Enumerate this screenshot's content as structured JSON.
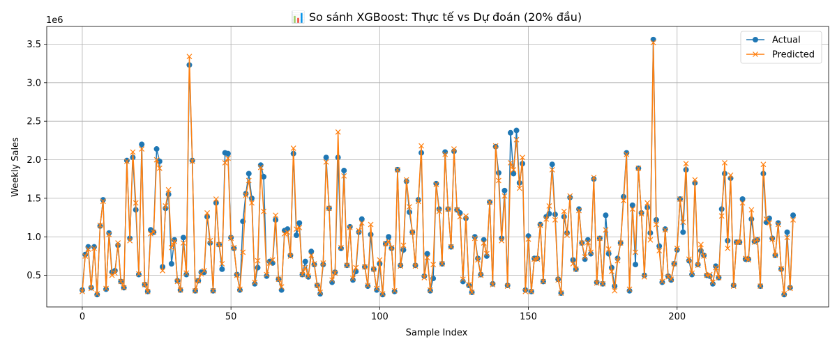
{
  "chart_data": {
    "type": "line",
    "title": "📊 So sánh XGBoost: Thực tế vs Dự đoán (20% đầu)",
    "xlabel": "Sample Index",
    "ylabel": "Weekly Sales",
    "y_multiplier": "1e6",
    "xlim": [
      -11.95,
      250.95
    ],
    "ylim": [
      0.09,
      3.73
    ],
    "xticks": [
      0,
      50,
      100,
      150,
      200
    ],
    "yticks": [
      0.5,
      1.0,
      1.5,
      2.0,
      2.5,
      3.0,
      3.5
    ],
    "ytick_labels": [
      "0.5",
      "1.0",
      "1.5",
      "2.0",
      "2.5",
      "3.0",
      "3.5"
    ],
    "grid": true,
    "legend": "top-right",
    "series": [
      {
        "name": "Actual",
        "color": "#1f77b4",
        "marker": "circle",
        "values": [
          0.31,
          0.77,
          0.87,
          0.34,
          0.87,
          0.25,
          1.14,
          1.48,
          0.32,
          1.05,
          0.54,
          0.56,
          0.89,
          0.42,
          0.34,
          1.99,
          0.98,
          2.03,
          1.35,
          0.51,
          2.2,
          0.38,
          0.29,
          1.09,
          1.06,
          2.14,
          1.98,
          0.61,
          1.37,
          1.55,
          0.65,
          0.96,
          0.43,
          0.31,
          0.99,
          0.51,
          3.23,
          1.99,
          0.3,
          0.43,
          0.54,
          0.54,
          1.26,
          0.92,
          0.3,
          1.44,
          0.9,
          0.58,
          2.09,
          2.08,
          0.99,
          0.85,
          0.51,
          0.31,
          1.2,
          1.56,
          1.82,
          1.5,
          0.39,
          0.6,
          1.93,
          1.78,
          0.49,
          0.68,
          0.66,
          1.22,
          0.45,
          0.31,
          1.08,
          1.1,
          0.76,
          2.08,
          1.02,
          1.18,
          0.51,
          0.68,
          0.48,
          0.81,
          0.64,
          0.37,
          0.26,
          0.64,
          2.03,
          1.37,
          0.41,
          0.54,
          2.03,
          0.85,
          1.86,
          0.63,
          1.13,
          0.44,
          0.55,
          1.06,
          1.23,
          0.61,
          0.36,
          1.03,
          0.58,
          0.31,
          0.65,
          0.25,
          0.91,
          1.0,
          0.85,
          0.29,
          1.87,
          0.63,
          0.83,
          1.72,
          1.32,
          1.06,
          0.63,
          1.48,
          2.09,
          0.49,
          0.78,
          0.3,
          0.46,
          1.69,
          1.36,
          0.65,
          2.1,
          1.36,
          0.87,
          2.11,
          1.35,
          1.31,
          0.42,
          1.24,
          0.37,
          0.28,
          1.0,
          0.72,
          0.51,
          0.96,
          0.75,
          1.45,
          0.39,
          2.17,
          1.83,
          0.98,
          1.6,
          0.37,
          2.35,
          1.82,
          2.38,
          1.7,
          1.95,
          0.31,
          1.01,
          0.29,
          0.72,
          0.72,
          1.16,
          0.42,
          1.26,
          1.3,
          1.94,
          1.29,
          0.45,
          0.27,
          1.26,
          1.05,
          1.51,
          0.7,
          0.58,
          1.36,
          0.92,
          0.71,
          0.96,
          0.78,
          1.75,
          0.41,
          0.98,
          0.39,
          1.28,
          0.78,
          0.6,
          0.36,
          0.72,
          0.92,
          1.52,
          2.09,
          0.3,
          1.41,
          0.64,
          1.89,
          1.31,
          0.5,
          1.38,
          1.05,
          3.56,
          1.22,
          0.88,
          0.41,
          1.1,
          0.49,
          0.44,
          0.65,
          0.83,
          1.49,
          1.06,
          1.87,
          0.69,
          0.51,
          1.7,
          0.64,
          0.82,
          0.76,
          0.5,
          0.49,
          0.39,
          0.62,
          0.47,
          1.36,
          1.82,
          0.95,
          1.76,
          0.37,
          0.93,
          0.93,
          1.49,
          0.71,
          0.71,
          1.23,
          0.94,
          0.96,
          0.36,
          1.82,
          1.19,
          1.24,
          0.98,
          0.76,
          1.18,
          0.58,
          0.25,
          1.06,
          0.34,
          1.28
        ]
      },
      {
        "name": "Predicted",
        "color": "#ff7f0e",
        "marker": "x",
        "values": [
          0.29,
          0.75,
          0.84,
          0.33,
          0.85,
          0.26,
          1.15,
          1.46,
          0.33,
          1.03,
          0.5,
          0.53,
          0.92,
          0.42,
          0.34,
          1.98,
          0.95,
          2.1,
          1.44,
          0.52,
          2.14,
          0.38,
          0.29,
          1.04,
          1.06,
          2.0,
          1.89,
          0.56,
          1.4,
          1.61,
          0.86,
          0.94,
          0.42,
          0.31,
          0.92,
          0.53,
          3.34,
          1.98,
          0.3,
          0.43,
          0.52,
          0.56,
          1.31,
          0.95,
          0.3,
          1.49,
          0.9,
          0.65,
          1.96,
          2.02,
          0.98,
          0.86,
          0.5,
          0.32,
          0.8,
          1.54,
          1.73,
          1.44,
          0.41,
          0.69,
          1.9,
          1.33,
          0.51,
          0.66,
          0.7,
          1.28,
          0.45,
          0.35,
          1.04,
          1.06,
          0.75,
          2.15,
          1.1,
          1.12,
          0.51,
          0.6,
          0.49,
          0.76,
          0.65,
          0.37,
          0.28,
          0.66,
          1.97,
          1.37,
          0.44,
          0.53,
          2.36,
          0.86,
          1.79,
          0.63,
          1.12,
          0.46,
          0.6,
          1.08,
          1.18,
          0.61,
          0.37,
          1.16,
          0.58,
          0.33,
          0.7,
          0.26,
          0.91,
          0.94,
          0.86,
          0.3,
          1.87,
          0.62,
          0.89,
          1.74,
          1.39,
          1.06,
          0.62,
          1.46,
          2.18,
          0.47,
          0.73,
          0.31,
          0.64,
          1.68,
          1.33,
          0.65,
          2.07,
          1.36,
          0.87,
          2.14,
          1.35,
          1.26,
          0.45,
          1.27,
          0.38,
          0.28,
          0.98,
          0.7,
          0.5,
          0.92,
          0.78,
          1.45,
          0.38,
          2.18,
          1.73,
          0.95,
          1.53,
          0.36,
          1.96,
          1.87,
          2.26,
          1.63,
          2.03,
          0.29,
          0.97,
          0.29,
          0.71,
          0.71,
          1.15,
          0.42,
          1.23,
          1.4,
          1.87,
          1.22,
          0.44,
          0.27,
          1.33,
          1.02,
          1.53,
          0.65,
          0.58,
          1.34,
          0.92,
          0.74,
          0.93,
          0.8,
          1.77,
          0.4,
          0.98,
          0.39,
          1.09,
          0.84,
          0.55,
          0.3,
          0.69,
          0.92,
          1.47,
          2.07,
          0.32,
          1.36,
          0.8,
          1.89,
          1.3,
          0.48,
          1.44,
          0.96,
          3.52,
          1.16,
          0.82,
          0.42,
          1.09,
          0.48,
          0.45,
          0.65,
          0.85,
          1.49,
          1.19,
          1.95,
          0.71,
          0.53,
          1.74,
          0.63,
          0.9,
          0.75,
          0.5,
          0.51,
          0.41,
          0.6,
          0.47,
          1.27,
          1.96,
          0.85,
          1.8,
          0.36,
          0.93,
          0.93,
          1.44,
          0.72,
          0.7,
          1.35,
          0.93,
          0.97,
          0.36,
          1.94,
          1.23,
          1.18,
          0.97,
          0.76,
          1.16,
          0.59,
          0.26,
          0.99,
          0.33,
          1.22
        ]
      }
    ]
  }
}
